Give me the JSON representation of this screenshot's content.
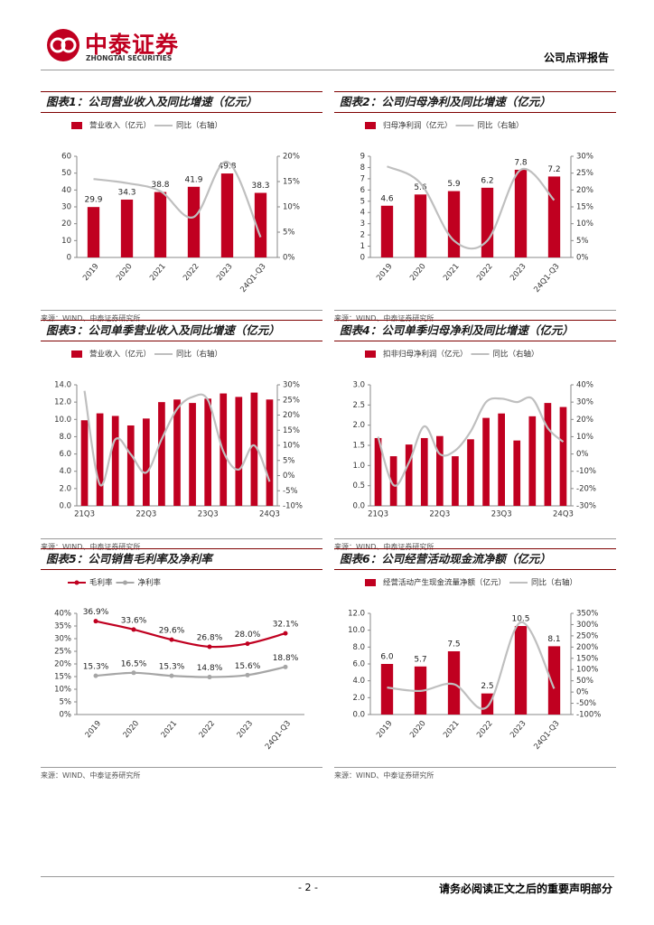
{
  "header": {
    "brand": "中泰证券",
    "brand_en": "ZHONGTAI SECURITIES",
    "report_type": "公司点评报告"
  },
  "figures": [
    {
      "title": "图表1：公司营业收入及同比增速（亿元）",
      "source": "来源：WIND、中泰证券研究所",
      "chart_data": {
        "type": "bar",
        "data_labels": true,
        "categories": [
          "2019",
          "2020",
          "2021",
          "2022",
          "2023",
          "24Q1-Q3"
        ],
        "series": [
          {
            "name": "营业收入（亿元）",
            "color": "#c00020",
            "values": [
              29.9,
              34.3,
              38.8,
              41.9,
              49.8,
              38.3
            ]
          },
          {
            "name": "同比（右轴）",
            "color": "#bfbfbf",
            "axis": "y2",
            "values": [
              15.5,
              14.7,
              13.1,
              8.0,
              18.9,
              4.0
            ]
          }
        ],
        "ylim": [
          0,
          60
        ],
        "yticks": [
          0,
          10,
          20,
          30,
          40,
          50,
          60
        ],
        "y2lim": [
          0,
          20
        ],
        "y2ticks": [
          {
            "value": 0,
            "label": "0%"
          },
          {
            "value": 5,
            "label": "5%"
          },
          {
            "value": 10,
            "label": "10%"
          },
          {
            "value": 15,
            "label": "15%"
          },
          {
            "value": 20,
            "label": "20%"
          }
        ]
      }
    },
    {
      "title": "图表2：公司归母净利及同比增速（亿元）",
      "source": "来源：WIND、中泰证券研究所",
      "chart_data": {
        "type": "bar",
        "data_labels": true,
        "categories": [
          "2019",
          "2020",
          "2021",
          "2022",
          "2023",
          "24Q1-Q3"
        ],
        "series": [
          {
            "name": "归母净利润（亿元）",
            "color": "#c00020",
            "values": [
              4.6,
              5.6,
              5.9,
              6.2,
              7.8,
              7.2
            ]
          },
          {
            "name": "同比（右轴）",
            "color": "#bfbfbf",
            "axis": "y2",
            "values": [
              27,
              22,
              5,
              5,
              26,
              17
            ]
          }
        ],
        "ylim": [
          0,
          9
        ],
        "yticks": [
          0,
          1,
          2,
          3,
          4,
          5,
          6,
          7,
          8,
          9
        ],
        "y2lim": [
          0,
          30
        ],
        "y2ticks": [
          {
            "value": 0,
            "label": "0%"
          },
          {
            "value": 5,
            "label": "5%"
          },
          {
            "value": 10,
            "label": "10%"
          },
          {
            "value": 15,
            "label": "15%"
          },
          {
            "value": 20,
            "label": "20%"
          },
          {
            "value": 25,
            "label": "25%"
          },
          {
            "value": 30,
            "label": "30%"
          }
        ]
      }
    },
    {
      "title": "图表3：公司单季营业收入及同比增速（亿元）",
      "source": "来源：WIND、中泰证券研究所",
      "chart_data": {
        "type": "bar",
        "data_labels": false,
        "categories": [
          "21Q3",
          null,
          null,
          null,
          "22Q3",
          null,
          null,
          null,
          "23Q3",
          null,
          null,
          null,
          "24Q3"
        ],
        "series": [
          {
            "name": "营业收入（亿元）",
            "color": "#c00020",
            "values": [
              9.9,
              10.7,
              10.4,
              9.3,
              10.1,
              12.0,
              12.3,
              11.9,
              12.4,
              13.0,
              12.6,
              13.1,
              12.3
            ]
          },
          {
            "name": "同比（右轴）",
            "color": "#bfbfbf",
            "axis": "y2",
            "values": [
              28,
              -3,
              12,
              7,
              1,
              12,
              22,
              26,
              25,
              8,
              2,
              10,
              -2
            ]
          }
        ],
        "ylim": [
          0,
          14
        ],
        "yticks": [
          {
            "value": 0,
            "label": "0.0"
          },
          {
            "value": 2,
            "label": "2.0"
          },
          {
            "value": 4,
            "label": "4.0"
          },
          {
            "value": 6,
            "label": "6.0"
          },
          {
            "value": 8,
            "label": "8.0"
          },
          {
            "value": 10,
            "label": "10.0"
          },
          {
            "value": 12,
            "label": "12.0"
          },
          {
            "value": 14,
            "label": "14.0"
          }
        ],
        "y2lim": [
          -10,
          30
        ],
        "y2ticks": [
          {
            "value": -10,
            "label": "-10%"
          },
          {
            "value": -5,
            "label": "-5%"
          },
          {
            "value": 0,
            "label": "0%"
          },
          {
            "value": 5,
            "label": "5%"
          },
          {
            "value": 10,
            "label": "10%"
          },
          {
            "value": 15,
            "label": "15%"
          },
          {
            "value": 20,
            "label": "20%"
          },
          {
            "value": 25,
            "label": "25%"
          },
          {
            "value": 30,
            "label": "30%"
          }
        ]
      }
    },
    {
      "title": "图表4：公司单季归母净利及同比增速（亿元）",
      "source": "来源：WIND、中泰证券研究所",
      "chart_data": {
        "type": "bar",
        "data_labels": false,
        "categories": [
          "21Q3",
          null,
          null,
          null,
          "22Q3",
          null,
          null,
          null,
          "23Q3",
          null,
          null,
          null,
          "24Q3"
        ],
        "series": [
          {
            "name": "扣非归母净利润（亿元）",
            "color": "#c00020",
            "values": [
              1.68,
              1.23,
              1.52,
              1.68,
              1.73,
              1.23,
              1.65,
              2.18,
              2.29,
              1.62,
              2.22,
              2.55,
              2.45
            ]
          },
          {
            "name": "同比（右轴）",
            "color": "#bfbfbf",
            "axis": "y2",
            "values": [
              10,
              -18,
              -5,
              16,
              0,
              2,
              13,
              30,
              32,
              30,
              32,
              15,
              7
            ]
          }
        ],
        "ylim": [
          0,
          3
        ],
        "yticks": [
          {
            "value": 0,
            "label": "0.0"
          },
          {
            "value": 0.5,
            "label": "0.5"
          },
          {
            "value": 1,
            "label": "1.0"
          },
          {
            "value": 1.5,
            "label": "1.5"
          },
          {
            "value": 2,
            "label": "2.0"
          },
          {
            "value": 2.5,
            "label": "2.5"
          },
          {
            "value": 3,
            "label": "3.0"
          }
        ],
        "y2lim": [
          -30,
          40
        ],
        "y2ticks": [
          {
            "value": -30,
            "label": "-30%"
          },
          {
            "value": -20,
            "label": "-20%"
          },
          {
            "value": -10,
            "label": "-10%"
          },
          {
            "value": 0,
            "label": "0%"
          },
          {
            "value": 10,
            "label": "10%"
          },
          {
            "value": 20,
            "label": "20%"
          },
          {
            "value": 30,
            "label": "30%"
          },
          {
            "value": 40,
            "label": "40%"
          }
        ]
      }
    },
    {
      "title": "图表5：公司销售毛利率及净利率",
      "source": "来源：WIND、中泰证券研究所",
      "chart_data": {
        "type": "line",
        "data_labels": true,
        "categories": [
          "2019",
          "2020",
          "2021",
          "2022",
          "2023",
          "24Q1-Q3"
        ],
        "series": [
          {
            "name": "毛利率",
            "color": "#c00020",
            "values": [
              36.9,
              33.6,
              29.6,
              26.8,
              28.0,
              32.1
            ],
            "value_labels": [
              "36.9%",
              "33.6%",
              "29.6%",
              "26.8%",
              "28.0%",
              "32.1%"
            ]
          },
          {
            "name": "净利率",
            "color": "#a6a6a6",
            "values": [
              15.3,
              16.5,
              15.3,
              14.8,
              15.6,
              18.8
            ],
            "value_labels": [
              "15.3%",
              "16.5%",
              "15.3%",
              "14.8%",
              "15.6%",
              "18.8%"
            ]
          }
        ],
        "ylim": [
          0,
          40
        ],
        "yticks": [
          {
            "value": 0,
            "label": "0%"
          },
          {
            "value": 5,
            "label": "5%"
          },
          {
            "value": 10,
            "label": "10%"
          },
          {
            "value": 15,
            "label": "15%"
          },
          {
            "value": 20,
            "label": "20%"
          },
          {
            "value": 25,
            "label": "25%"
          },
          {
            "value": 30,
            "label": "30%"
          },
          {
            "value": 35,
            "label": "35%"
          },
          {
            "value": 40,
            "label": "40%"
          }
        ]
      }
    },
    {
      "title": "图表6：公司经营活动现金流净额（亿元）",
      "source": "来源：WIND、中泰证券研究所",
      "chart_data": {
        "type": "bar",
        "data_labels": true,
        "categories": [
          "2019",
          "2020",
          "2021",
          "2022",
          "2023",
          "24Q1-Q3"
        ],
        "series": [
          {
            "name": "经营活动产生现金流量净额（亿元）",
            "color": "#c00020",
            "values": [
              6.0,
              5.7,
              7.5,
              2.5,
              10.5,
              8.1
            ],
            "value_labels": [
              "6.0",
              "5.7",
              "7.5",
              "2.5",
              "10.5",
              "8.1"
            ]
          },
          {
            "name": "同比（右轴）",
            "color": "#bfbfbf",
            "axis": "y2",
            "values": [
              20,
              5,
              35,
              -65,
              310,
              15
            ]
          }
        ],
        "ylim": [
          0,
          12
        ],
        "yticks": [
          {
            "value": 0,
            "label": "0.0"
          },
          {
            "value": 2,
            "label": "2.0"
          },
          {
            "value": 4,
            "label": "4.0"
          },
          {
            "value": 6,
            "label": "6.0"
          },
          {
            "value": 8,
            "label": "8.0"
          },
          {
            "value": 10,
            "label": "10.0"
          },
          {
            "value": 12,
            "label": "12.0"
          }
        ],
        "y2lim": [
          -100,
          350
        ],
        "y2ticks": [
          {
            "value": -100,
            "label": "-100%"
          },
          {
            "value": -50,
            "label": "-50%"
          },
          {
            "value": 0,
            "label": "0%"
          },
          {
            "value": 50,
            "label": "50%"
          },
          {
            "value": 100,
            "label": "100%"
          },
          {
            "value": 150,
            "label": "150%"
          },
          {
            "value": 200,
            "label": "200%"
          },
          {
            "value": 250,
            "label": "250%"
          },
          {
            "value": 300,
            "label": "300%"
          },
          {
            "value": 350,
            "label": "350%"
          }
        ]
      }
    }
  ],
  "footer": {
    "page": "- 2 -",
    "notice": "请务必阅读正文之后的重要声明部分"
  }
}
